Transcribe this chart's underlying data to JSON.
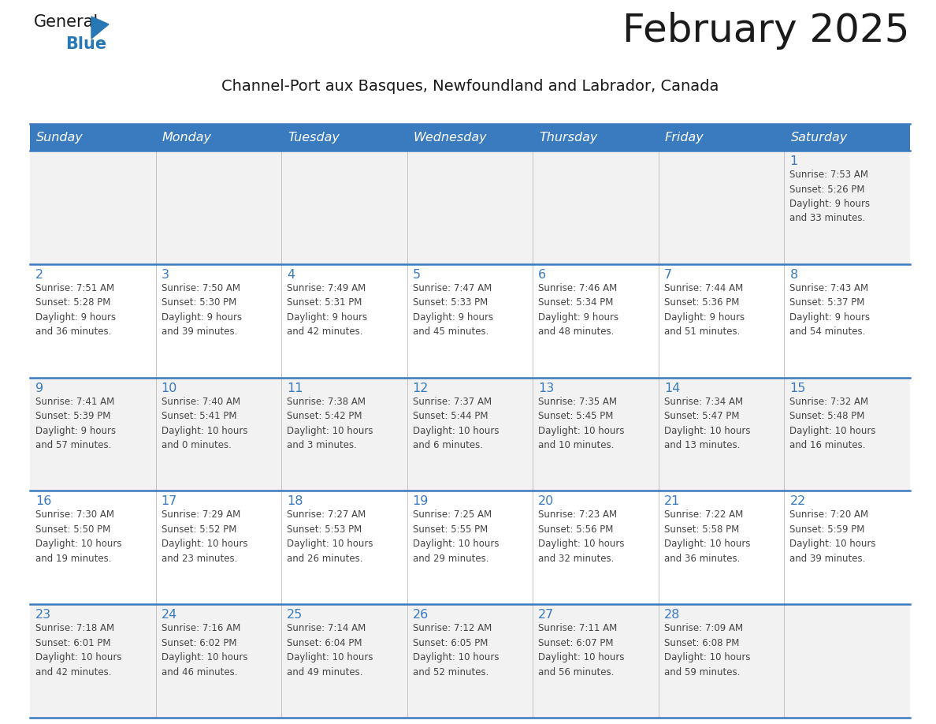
{
  "title": "February 2025",
  "subtitle": "Channel-Port aux Basques, Newfoundland and Labrador, Canada",
  "days_of_week": [
    "Sunday",
    "Monday",
    "Tuesday",
    "Wednesday",
    "Thursday",
    "Friday",
    "Saturday"
  ],
  "header_bg": "#3a7abf",
  "header_text": "#ffffff",
  "row_bg": [
    "#f2f2f2",
    "#ffffff",
    "#f2f2f2",
    "#ffffff",
    "#f2f2f2"
  ],
  "separator_color": "#3a7abf",
  "day_number_color": "#3a7abf",
  "text_color": "#444444",
  "logo_general_color": "#1a1a1a",
  "logo_blue_color": "#2878b5",
  "weeks": [
    [
      {
        "day": null,
        "info": null
      },
      {
        "day": null,
        "info": null
      },
      {
        "day": null,
        "info": null
      },
      {
        "day": null,
        "info": null
      },
      {
        "day": null,
        "info": null
      },
      {
        "day": null,
        "info": null
      },
      {
        "day": 1,
        "info": "Sunrise: 7:53 AM\nSunset: 5:26 PM\nDaylight: 9 hours\nand 33 minutes."
      }
    ],
    [
      {
        "day": 2,
        "info": "Sunrise: 7:51 AM\nSunset: 5:28 PM\nDaylight: 9 hours\nand 36 minutes."
      },
      {
        "day": 3,
        "info": "Sunrise: 7:50 AM\nSunset: 5:30 PM\nDaylight: 9 hours\nand 39 minutes."
      },
      {
        "day": 4,
        "info": "Sunrise: 7:49 AM\nSunset: 5:31 PM\nDaylight: 9 hours\nand 42 minutes."
      },
      {
        "day": 5,
        "info": "Sunrise: 7:47 AM\nSunset: 5:33 PM\nDaylight: 9 hours\nand 45 minutes."
      },
      {
        "day": 6,
        "info": "Sunrise: 7:46 AM\nSunset: 5:34 PM\nDaylight: 9 hours\nand 48 minutes."
      },
      {
        "day": 7,
        "info": "Sunrise: 7:44 AM\nSunset: 5:36 PM\nDaylight: 9 hours\nand 51 minutes."
      },
      {
        "day": 8,
        "info": "Sunrise: 7:43 AM\nSunset: 5:37 PM\nDaylight: 9 hours\nand 54 minutes."
      }
    ],
    [
      {
        "day": 9,
        "info": "Sunrise: 7:41 AM\nSunset: 5:39 PM\nDaylight: 9 hours\nand 57 minutes."
      },
      {
        "day": 10,
        "info": "Sunrise: 7:40 AM\nSunset: 5:41 PM\nDaylight: 10 hours\nand 0 minutes."
      },
      {
        "day": 11,
        "info": "Sunrise: 7:38 AM\nSunset: 5:42 PM\nDaylight: 10 hours\nand 3 minutes."
      },
      {
        "day": 12,
        "info": "Sunrise: 7:37 AM\nSunset: 5:44 PM\nDaylight: 10 hours\nand 6 minutes."
      },
      {
        "day": 13,
        "info": "Sunrise: 7:35 AM\nSunset: 5:45 PM\nDaylight: 10 hours\nand 10 minutes."
      },
      {
        "day": 14,
        "info": "Sunrise: 7:34 AM\nSunset: 5:47 PM\nDaylight: 10 hours\nand 13 minutes."
      },
      {
        "day": 15,
        "info": "Sunrise: 7:32 AM\nSunset: 5:48 PM\nDaylight: 10 hours\nand 16 minutes."
      }
    ],
    [
      {
        "day": 16,
        "info": "Sunrise: 7:30 AM\nSunset: 5:50 PM\nDaylight: 10 hours\nand 19 minutes."
      },
      {
        "day": 17,
        "info": "Sunrise: 7:29 AM\nSunset: 5:52 PM\nDaylight: 10 hours\nand 23 minutes."
      },
      {
        "day": 18,
        "info": "Sunrise: 7:27 AM\nSunset: 5:53 PM\nDaylight: 10 hours\nand 26 minutes."
      },
      {
        "day": 19,
        "info": "Sunrise: 7:25 AM\nSunset: 5:55 PM\nDaylight: 10 hours\nand 29 minutes."
      },
      {
        "day": 20,
        "info": "Sunrise: 7:23 AM\nSunset: 5:56 PM\nDaylight: 10 hours\nand 32 minutes."
      },
      {
        "day": 21,
        "info": "Sunrise: 7:22 AM\nSunset: 5:58 PM\nDaylight: 10 hours\nand 36 minutes."
      },
      {
        "day": 22,
        "info": "Sunrise: 7:20 AM\nSunset: 5:59 PM\nDaylight: 10 hours\nand 39 minutes."
      }
    ],
    [
      {
        "day": 23,
        "info": "Sunrise: 7:18 AM\nSunset: 6:01 PM\nDaylight: 10 hours\nand 42 minutes."
      },
      {
        "day": 24,
        "info": "Sunrise: 7:16 AM\nSunset: 6:02 PM\nDaylight: 10 hours\nand 46 minutes."
      },
      {
        "day": 25,
        "info": "Sunrise: 7:14 AM\nSunset: 6:04 PM\nDaylight: 10 hours\nand 49 minutes."
      },
      {
        "day": 26,
        "info": "Sunrise: 7:12 AM\nSunset: 6:05 PM\nDaylight: 10 hours\nand 52 minutes."
      },
      {
        "day": 27,
        "info": "Sunrise: 7:11 AM\nSunset: 6:07 PM\nDaylight: 10 hours\nand 56 minutes."
      },
      {
        "day": 28,
        "info": "Sunrise: 7:09 AM\nSunset: 6:08 PM\nDaylight: 10 hours\nand 59 minutes."
      },
      {
        "day": null,
        "info": null
      }
    ]
  ]
}
